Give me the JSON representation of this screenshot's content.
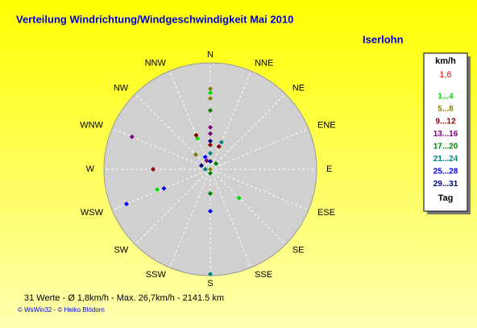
{
  "chart_data": {
    "type": "polar-scatter",
    "title": "Verteilung Windrichtung/Windgeschwindigkeit  Mai 2010",
    "location": "Iserlohn",
    "direction_labels": [
      "N",
      "NNE",
      "NE",
      "ENE",
      "E",
      "ESE",
      "SE",
      "SSE",
      "S",
      "SSW",
      "SW",
      "WSW",
      "W",
      "WNW",
      "NW",
      "NNW"
    ],
    "rlim": [
      0,
      32
    ],
    "legend_title": "km/h",
    "legend_note": "1,6",
    "legend_footer": "Tag",
    "series": [
      {
        "name": "1...4",
        "color": "#00e000",
        "directions": [
          0,
          135,
          249,
          337.5
        ],
        "values": [
          23,
          12.2,
          17.1,
          10
        ]
      },
      {
        "name": "5...8",
        "color": "#808000",
        "directions": [
          0,
          0,
          0,
          315
        ],
        "values": [
          24.2,
          21.3,
          0,
          6.2
        ]
      },
      {
        "name": "9...12",
        "color": "#900000",
        "directions": [
          0,
          337.5,
          21,
          270
        ],
        "values": [
          7.3,
          11.1,
          7.3,
          17.2
        ]
      },
      {
        "name": "13...16",
        "color": "#800080",
        "directions": [
          0,
          0,
          292.5,
          337.5
        ],
        "values": [
          12.6,
          10.7,
          25.5,
          2.8
        ]
      },
      {
        "name": "17...20",
        "color": "#008000",
        "directions": [
          0,
          180,
          45,
          180
        ],
        "values": [
          17.7,
          7.3,
          2.4,
          1.2
        ]
      },
      {
        "name": "21...24",
        "color": "#008080",
        "directions": [
          22.5,
          180,
          270,
          0
        ],
        "values": [
          8.8,
          31.5,
          1.5,
          4.8
        ]
      },
      {
        "name": "25...28",
        "color": "#0000ff",
        "directions": [
          247.5,
          247.5,
          180,
          337.5
        ],
        "values": [
          27.3,
          15.1,
          12.6,
          4.0
        ]
      },
      {
        "name": "29...31",
        "color": "#000080",
        "directions": [
          0,
          292.5,
          0
        ],
        "values": [
          8.5,
          2.9,
          2.4
        ]
      }
    ],
    "summary": "31 Werte   -   Ø 1,8km/h   -   Max. 26,7km/h   -   2141.5 km",
    "credit": "© WsWin32   -   © Heiko Blödorn"
  }
}
